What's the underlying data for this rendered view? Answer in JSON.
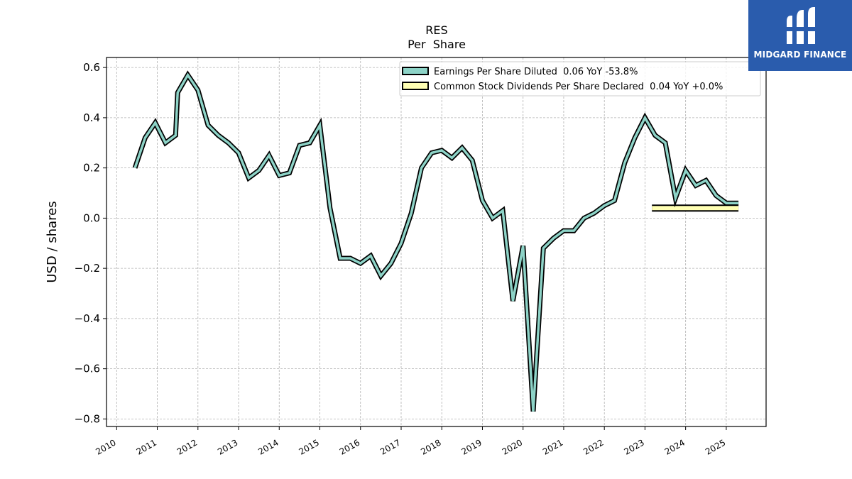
{
  "chart_data": {
    "type": "line",
    "title": "RES",
    "subtitle": "Per  Share",
    "ylabel": "USD / shares",
    "xlabel": "",
    "ylim": [
      -0.83,
      0.64
    ],
    "xlim": [
      2009.75,
      2025.98
    ],
    "yticks": [
      0.6,
      0.4,
      0.2,
      0.0,
      -0.2,
      -0.4,
      -0.6,
      -0.8
    ],
    "ytick_labels": [
      "0.6",
      "0.4",
      "0.2",
      "0.0",
      "−0.2",
      "−0.4",
      "−0.6",
      "−0.8"
    ],
    "xticks": [
      2010,
      2011,
      2012,
      2013,
      2014,
      2015,
      2016,
      2017,
      2018,
      2019,
      2020,
      2021,
      2022,
      2023,
      2024,
      2025
    ],
    "xtick_labels": [
      "2010",
      "2011",
      "2012",
      "2013",
      "2014",
      "2015",
      "2016",
      "2017",
      "2018",
      "2019",
      "2020",
      "2021",
      "2022",
      "2023",
      "2024",
      "2025"
    ],
    "grid": true,
    "legend_position": "top-right",
    "series": [
      {
        "name": "Earnings Per Share Diluted",
        "legend_label": "Earnings Per Share Diluted  0.06 YoY -53.8%",
        "color": "#8dd3c7",
        "x": [
          2010.45,
          2010.7,
          2010.95,
          2011.2,
          2011.45,
          2011.5,
          2011.75,
          2012.0,
          2012.25,
          2012.5,
          2012.75,
          2013.0,
          2013.25,
          2013.5,
          2013.75,
          2014.0,
          2014.25,
          2014.5,
          2014.75,
          2015.0,
          2015.25,
          2015.5,
          2015.75,
          2016.0,
          2016.25,
          2016.5,
          2016.75,
          2017.0,
          2017.25,
          2017.5,
          2017.75,
          2018.0,
          2018.25,
          2018.5,
          2018.75,
          2019.0,
          2019.25,
          2019.5,
          2019.75,
          2020.0,
          2020.25,
          2020.5,
          2020.75,
          2021.0,
          2021.25,
          2021.5,
          2021.75,
          2022.0,
          2022.25,
          2022.5,
          2022.75,
          2023.0,
          2023.25,
          2023.5,
          2023.75,
          2024.0,
          2024.25,
          2024.5,
          2024.75,
          2025.0,
          2025.3
        ],
        "values": [
          0.2,
          0.32,
          0.38,
          0.3,
          0.33,
          0.5,
          0.57,
          0.51,
          0.37,
          0.33,
          0.3,
          0.26,
          0.16,
          0.19,
          0.25,
          0.17,
          0.18,
          0.29,
          0.3,
          0.37,
          0.04,
          -0.16,
          -0.16,
          -0.18,
          -0.15,
          -0.23,
          -0.18,
          -0.1,
          0.02,
          0.2,
          0.26,
          0.27,
          0.24,
          0.28,
          0.23,
          0.07,
          0.0,
          0.03,
          -0.33,
          -0.11,
          -0.77,
          -0.12,
          -0.08,
          -0.05,
          -0.05,
          0.0,
          0.02,
          0.05,
          0.07,
          0.22,
          0.32,
          0.4,
          0.33,
          0.3,
          0.08,
          0.19,
          0.13,
          0.15,
          0.09,
          0.06,
          0.06
        ]
      },
      {
        "name": "Common Stock Dividends Per Share Declared",
        "legend_label": "Common Stock Dividends Per Share Declared  0.04 YoY +0.0%",
        "color": "#ffffb3",
        "x": [
          2023.17,
          2025.3
        ],
        "values": [
          0.04,
          0.04
        ]
      }
    ]
  },
  "logo": {
    "text": "MIDGARD FINANCE",
    "background": "#2a5cad"
  }
}
